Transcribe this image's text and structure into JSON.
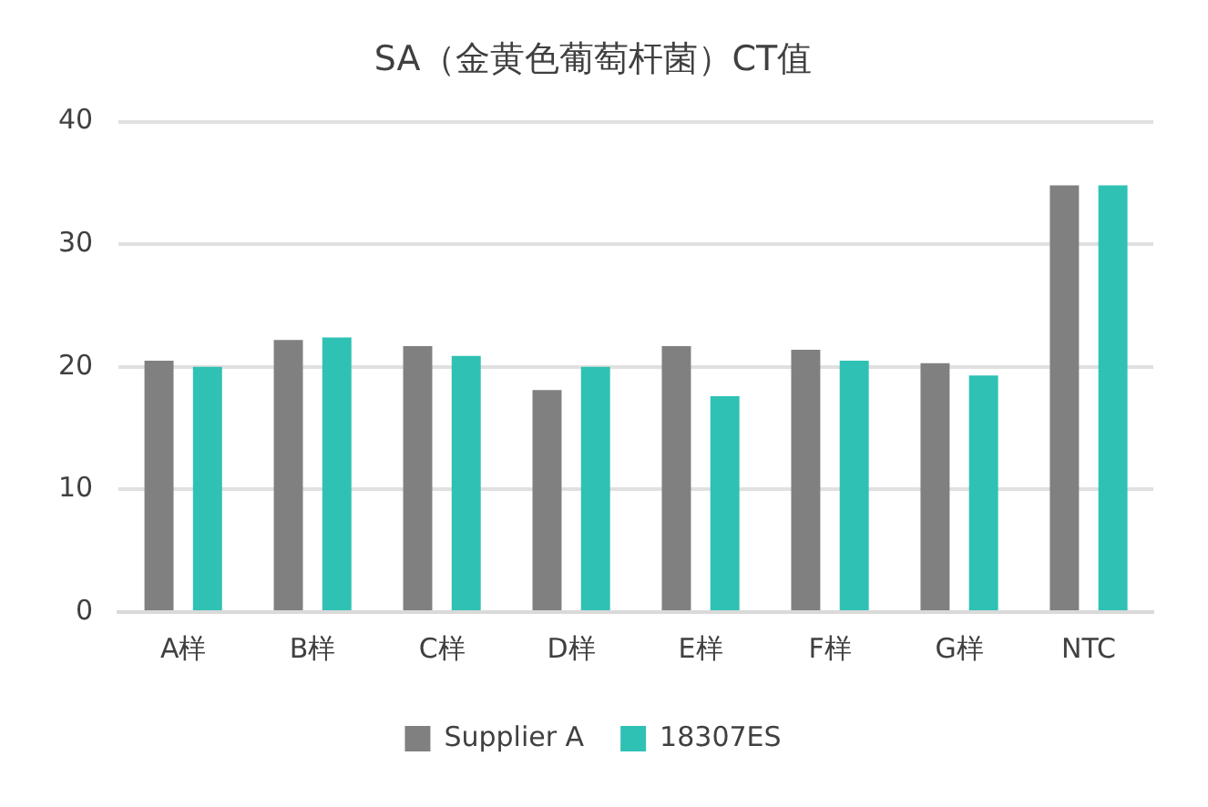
{
  "chart_data": {
    "type": "bar",
    "title": "SA（金黄色葡萄杆菌）CT值",
    "categories": [
      "A样",
      "B样",
      "C样",
      "D样",
      "E样",
      "F样",
      "G样",
      "NTC"
    ],
    "series": [
      {
        "name": "Supplier A",
        "color": "#808080",
        "values": [
          20.5,
          22.2,
          21.7,
          18.1,
          21.7,
          21.4,
          20.3,
          34.8
        ]
      },
      {
        "name": "18307ES",
        "color": "#2fc1b4",
        "values": [
          20.0,
          22.4,
          20.9,
          20.0,
          17.6,
          20.5,
          19.3,
          34.8
        ]
      }
    ],
    "ylim": [
      0,
      40
    ],
    "yticks": [
      0,
      10,
      20,
      30,
      40
    ],
    "grid": "y",
    "legend": "bottom"
  }
}
